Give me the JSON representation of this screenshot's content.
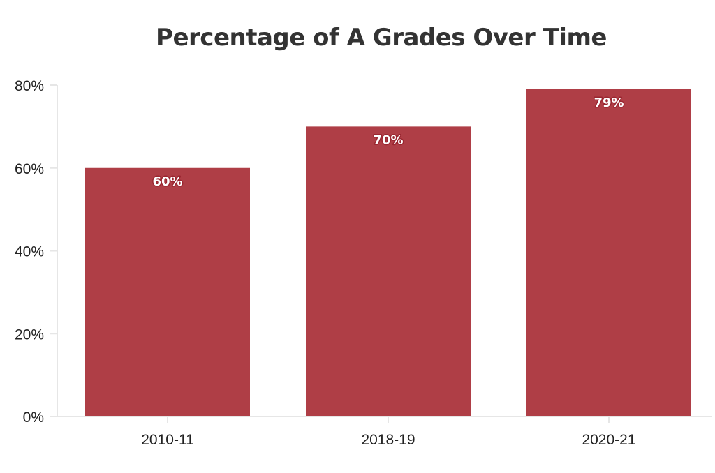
{
  "chart_data": {
    "type": "bar",
    "title": "Percentage of A Grades Over Time",
    "xlabel": "",
    "ylabel": "",
    "categories": [
      "2010-11",
      "2018-19",
      "2020-21"
    ],
    "values": [
      60,
      70,
      79
    ],
    "data_labels": [
      "60%",
      "70%",
      "79%"
    ],
    "yticks": [
      0,
      20,
      40,
      60,
      80
    ],
    "ytick_labels": [
      "0%",
      "20%",
      "40%",
      "60%",
      "80%"
    ],
    "ylim": [
      0,
      80
    ],
    "grid": false,
    "legend": "none",
    "bar_color": "#af3e46"
  }
}
